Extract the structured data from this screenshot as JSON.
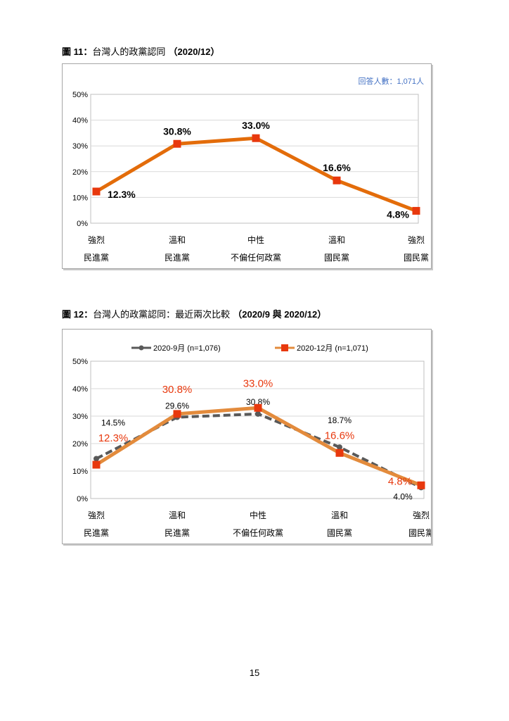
{
  "page_number": "15",
  "figures": [
    {
      "label": "圖 11：",
      "title_text": "台灣人的政黨認同",
      "title_date": "（2020/12）",
      "note": "回答人數：1,071人"
    },
    {
      "label": "圖 12：",
      "title_text": "台灣人的政黨認同：最近兩次比較",
      "title_date": "（2020/9 與 2020/12）"
    }
  ],
  "chart_data": [
    {
      "type": "line",
      "categories": [
        [
          "強烈",
          "民進黨"
        ],
        [
          "溫和",
          "民進黨"
        ],
        [
          "中性",
          "不偏任何政黨"
        ],
        [
          "溫和",
          "國民黨"
        ],
        [
          "強烈",
          "國民黨"
        ]
      ],
      "series": [
        {
          "values": [
            12.3,
            30.8,
            33.0,
            16.6,
            4.8
          ],
          "labels": [
            "12.3%",
            "30.8%",
            "33.0%",
            "16.6%",
            "4.8%"
          ],
          "color": "#E36C0A",
          "marker_color": "#E8380D"
        }
      ],
      "yticks": [
        "0%",
        "10%",
        "20%",
        "30%",
        "40%",
        "50%"
      ],
      "ylim": [
        0,
        50
      ],
      "grid": true
    },
    {
      "type": "line",
      "categories": [
        [
          "強烈",
          "民進黨"
        ],
        [
          "溫和",
          "民進黨"
        ],
        [
          "中性",
          "不偏任何政黨"
        ],
        [
          "溫和",
          "國民黨"
        ],
        [
          "強烈",
          "國民黨"
        ]
      ],
      "series": [
        {
          "name": "2020-9月 (n=1,076)",
          "values": [
            14.5,
            29.6,
            30.8,
            18.7,
            4.0
          ],
          "labels": [
            "14.5%",
            "29.6%",
            "30.8%",
            "18.7%",
            "4.0%"
          ],
          "color": "#595959",
          "style": "dashed"
        },
        {
          "name": "2020-12月 (n=1,071)",
          "values": [
            12.3,
            30.8,
            33.0,
            16.6,
            4.8
          ],
          "labels": [
            "12.3%",
            "30.8%",
            "33.0%",
            "16.6%",
            "4.8%"
          ],
          "color": "#E38B3C",
          "marker_color": "#E8380D",
          "label_color": "#E8380D"
        }
      ],
      "yticks": [
        "0%",
        "10%",
        "20%",
        "30%",
        "40%",
        "50%"
      ],
      "ylim": [
        0,
        50
      ],
      "legend": "top",
      "grid": true
    }
  ]
}
